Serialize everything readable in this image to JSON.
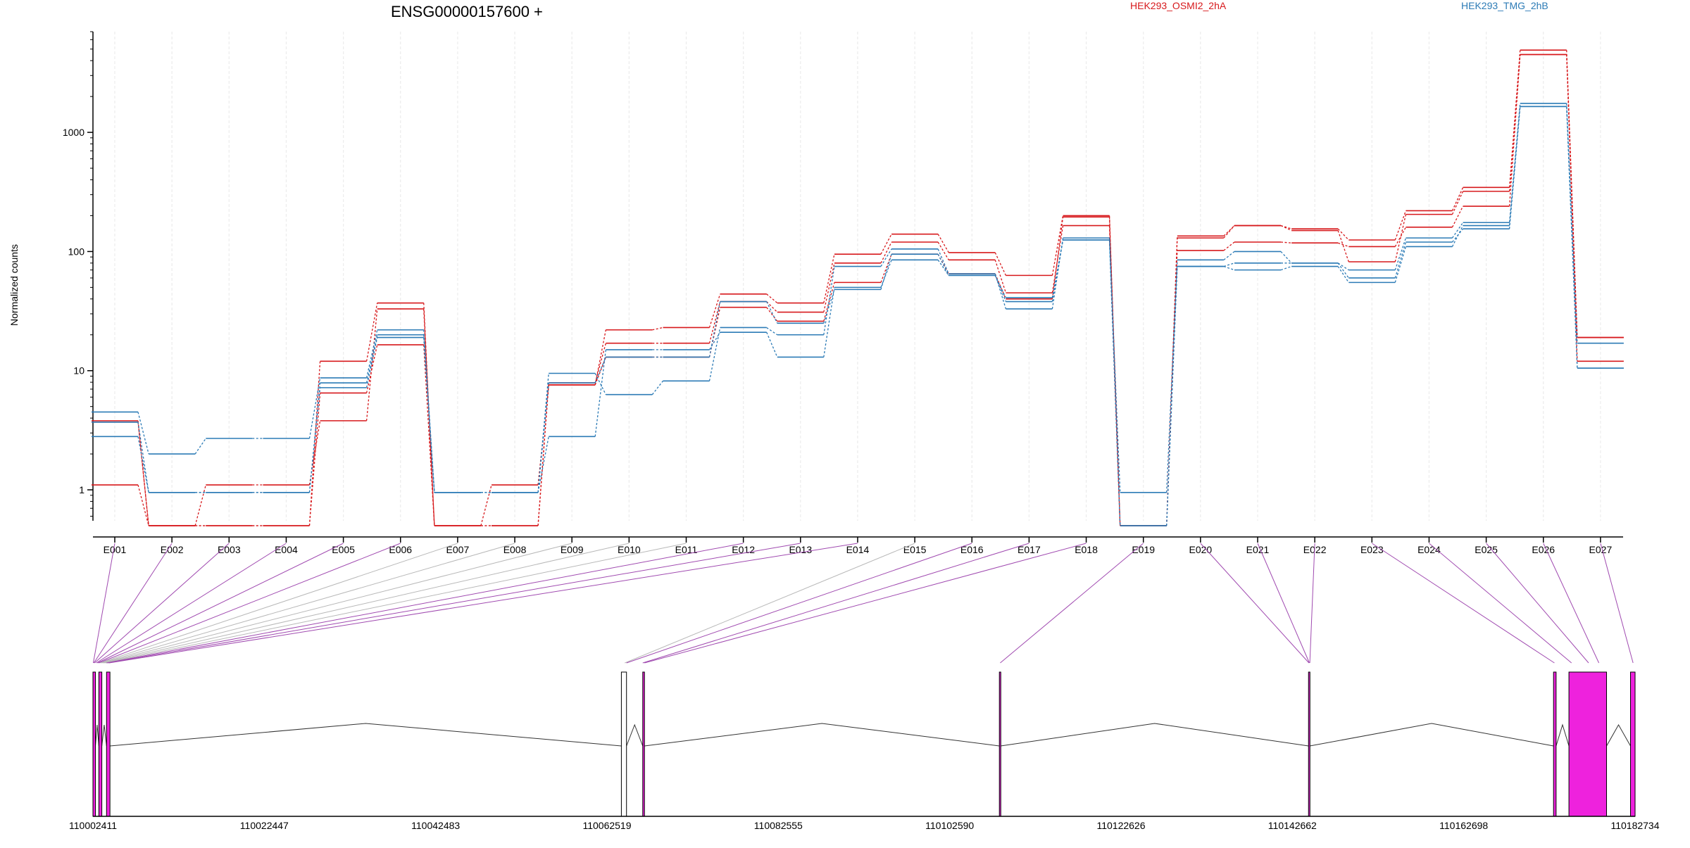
{
  "chart_data": {
    "type": "line",
    "title": "ENSG00000157600 +",
    "ylabel": "Normalized counts",
    "y_scale": "log",
    "ylim": [
      0.55,
      7000
    ],
    "y_ticks": [
      1,
      10,
      100,
      1000
    ],
    "y_tick_labels": [
      "1",
      "10",
      "100",
      "1000"
    ],
    "categories": [
      "E001",
      "E002",
      "E003",
      "E004",
      "E005",
      "E006",
      "E007",
      "E008",
      "E009",
      "E010",
      "E011",
      "E012",
      "E013",
      "E014",
      "E015",
      "E016",
      "E017",
      "E018",
      "E019",
      "E020",
      "E021",
      "E022",
      "E023",
      "E024",
      "E025",
      "E026",
      "E027"
    ],
    "grid": "vertical",
    "legend": [
      {
        "label": "HEK293_OSMI2_2hA",
        "color": "#d7191c"
      },
      {
        "label": "HEK293_TMG_2hB",
        "color": "#2c7bb6"
      }
    ],
    "series": [
      {
        "group": "HEK293_OSMI2_2hA",
        "color": "#d7191c",
        "values": [
          1.1,
          0.5,
          1.1,
          1.1,
          3.8,
          33,
          0.5,
          1.1,
          7.6,
          22,
          23,
          44,
          37,
          95,
          140,
          98,
          63,
          200,
          0.5,
          135,
          165,
          155,
          125,
          220,
          345,
          4900,
          19
        ]
      },
      {
        "group": "HEK293_OSMI2_2hA",
        "color": "#d7191c",
        "values": [
          3.7,
          0.5,
          0.5,
          0.5,
          12,
          37,
          0.5,
          0.5,
          7.9,
          17,
          17,
          38,
          31,
          80,
          120,
          85,
          45,
          165,
          0.5,
          102,
          120,
          118,
          110,
          160,
          240,
          4500,
          12
        ]
      },
      {
        "group": "HEK293_OSMI2_2hA",
        "color": "#d7191c",
        "values": [
          3.8,
          0.5,
          0.5,
          0.5,
          6.5,
          16.5,
          0.5,
          0.5,
          7.6,
          13,
          13,
          34,
          26,
          55,
          95,
          65,
          40,
          195,
          0.5,
          130,
          165,
          150,
          82,
          205,
          320,
          4500,
          19
        ]
      },
      {
        "group": "HEK293_TMG_2hB",
        "color": "#2c7bb6",
        "values": [
          4.5,
          2.0,
          2.7,
          2.7,
          8.7,
          22,
          0.95,
          0.95,
          9.5,
          6.3,
          8.2,
          23,
          20,
          75,
          105,
          65,
          33,
          130,
          0.95,
          85,
          100,
          80,
          70,
          130,
          175,
          1750,
          17
        ]
      },
      {
        "group": "HEK293_TMG_2hB",
        "color": "#2c7bb6",
        "values": [
          3.7,
          0.95,
          0.95,
          0.95,
          7.9,
          20,
          0.95,
          0.95,
          2.8,
          15,
          15,
          21,
          13,
          50,
          85,
          63,
          41,
          125,
          0.5,
          75,
          70,
          75,
          55,
          110,
          165,
          1650,
          10.5
        ]
      },
      {
        "group": "HEK293_TMG_2hB",
        "color": "#2c7bb6",
        "values": [
          2.8,
          0.95,
          0.95,
          0.95,
          7.2,
          19,
          0.95,
          0.95,
          7.9,
          13,
          13,
          38,
          25,
          48,
          95,
          63,
          38,
          125,
          0.5,
          75,
          80,
          80,
          60,
          120,
          155,
          1650,
          10.5
        ]
      }
    ],
    "gene_model": {
      "xlabel_ticks": [
        "110002411",
        "110022447",
        "110042483",
        "110062519",
        "110082555",
        "110102590",
        "110122626",
        "110142662",
        "110162698",
        "110182734"
      ],
      "x_range": [
        110002411,
        110182734
      ],
      "exon_fill": "#ee22dd",
      "exons": [
        {
          "start": 110002411,
          "end": 110002700,
          "hit": true
        },
        {
          "start": 110003100,
          "end": 110003450,
          "hit": true
        },
        {
          "start": 110004000,
          "end": 110004400,
          "hit": true
        },
        {
          "start": 110064200,
          "end": 110064800,
          "hit": false
        },
        {
          "start": 110066700,
          "end": 110066900,
          "hit": true
        },
        {
          "start": 110108400,
          "end": 110108550,
          "hit": true
        },
        {
          "start": 110144550,
          "end": 110144700,
          "hit": true
        },
        {
          "start": 110173200,
          "end": 110173500,
          "hit": true
        },
        {
          "start": 110175000,
          "end": 110179400,
          "hit": true
        },
        {
          "start": 110182200,
          "end": 110182734,
          "hit": true
        }
      ],
      "exon_bin_map": [
        110002450,
        110002520,
        110002600,
        110002800,
        110002950,
        110003100,
        110003250,
        110003400,
        110003550,
        110003700,
        110003850,
        110004000,
        110004150,
        110004300,
        110064600,
        110064800,
        110066700,
        110066900,
        110108500,
        110144600,
        110144650,
        110144700,
        110173300,
        110175300,
        110177300,
        110178500,
        110182500
      ]
    }
  }
}
